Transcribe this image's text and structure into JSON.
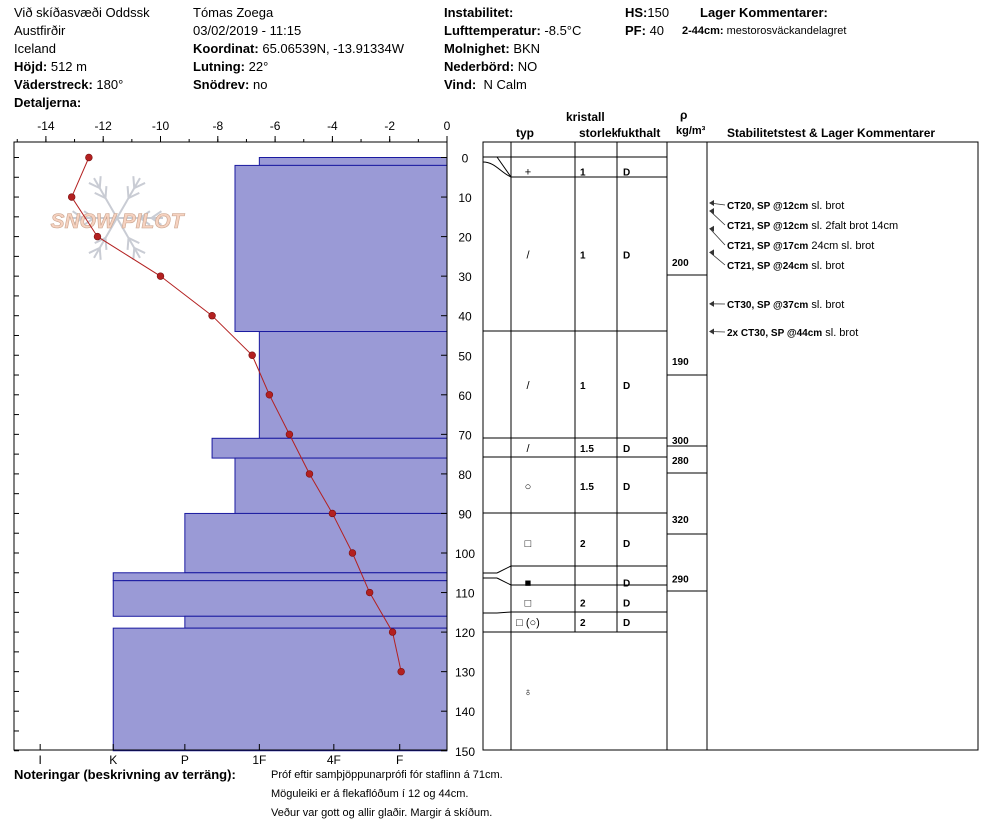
{
  "header": {
    "location": [
      "Við skíðasvæði Oddssk",
      "Austfirðir",
      "Iceland"
    ],
    "elevation_label": "Höjd:",
    "elevation_value": "512 m",
    "aspect_label": "Väderstreck:",
    "aspect_value": "180°",
    "details_label": "Detaljerna:",
    "observer": "Tómas Zoega",
    "datetime": "03/02/2019 - 11:15",
    "coord_label": "Koordinat:",
    "coord_value": "65.06539N, -13.91334W",
    "slope_label": "Lutning:",
    "slope_value": "22°",
    "snowdrift_label": "Snödrev:",
    "snowdrift_value": "no",
    "instability_label": "Instabilitet:",
    "airtemp_label": "Lufttemperatur:",
    "airtemp_value": "-8.5°C",
    "sky_label": "Molnighet:",
    "sky_value": "BKN",
    "precip_label": "Nederbörd:",
    "precip_value": "NO",
    "wind_label": "Vind:",
    "wind_value": "N Calm",
    "hs_label": "HS:",
    "hs_value": "150",
    "pf_label": "PF:",
    "pf_value": "40",
    "layer_comments_title": "Lager Kommentarer:",
    "layer_comment_depth": "2-44cm:",
    "layer_comment_text": "mestorosväckandelagret"
  },
  "watermark": {
    "text": "SNOW PILOT"
  },
  "columns": {
    "crystal": "kristall",
    "type": "typ",
    "size": "storlek",
    "moisture": "fukthalt",
    "rho": "ρ",
    "density_unit": "kg/m³",
    "stability": "Stabilitetstest & Lager Kommentarer"
  },
  "notes": {
    "label": "Noteringar (beskrivning av terräng):",
    "lines": [
      "Próf eftir samþjöppunarprófi fór staflinn á 71cm.",
      "Möguleiki er á flekaflóðum í 12 og 44cm.",
      "Veður var gott og allir glaðir. Margir á skíðum."
    ]
  },
  "chart_data": {
    "type": "line",
    "temp_axis": {
      "ticks": [
        "-14",
        "-12",
        "-10",
        "-8",
        "-6",
        "-4",
        "-2",
        "0"
      ],
      "range": [
        -15,
        0
      ]
    },
    "depth_axis": {
      "ticks": [
        "0",
        "10",
        "20",
        "30",
        "40",
        "50",
        "60",
        "70",
        "80",
        "90",
        "100",
        "110",
        "120",
        "130",
        "140",
        "150"
      ],
      "range": [
        0,
        150
      ]
    },
    "hardness_axis": {
      "ticks": [
        "I",
        "K",
        "P",
        "1F",
        "4F",
        "F"
      ],
      "values": [
        14.2,
        11.65,
        9.15,
        6.55,
        3.95,
        1.65
      ]
    },
    "temperature_profile": [
      {
        "temp": -12.5,
        "depth": 0
      },
      {
        "temp": -13.1,
        "depth": 10
      },
      {
        "temp": -12.2,
        "depth": 20
      },
      {
        "temp": -10.0,
        "depth": 30
      },
      {
        "temp": -8.2,
        "depth": 40
      },
      {
        "temp": -6.8,
        "depth": 50
      },
      {
        "temp": -6.2,
        "depth": 60
      },
      {
        "temp": -5.5,
        "depth": 70
      },
      {
        "temp": -4.8,
        "depth": 80
      },
      {
        "temp": -4.0,
        "depth": 90
      },
      {
        "temp": -3.3,
        "depth": 100
      },
      {
        "temp": -2.7,
        "depth": 110
      },
      {
        "temp": -1.9,
        "depth": 120
      },
      {
        "temp": -1.6,
        "depth": 130
      }
    ],
    "hardness_layers": [
      {
        "from": 0,
        "to": 2,
        "hardness": "1F"
      },
      {
        "from": 2,
        "to": 44,
        "hardness": "1F-"
      },
      {
        "from": 44,
        "to": 71,
        "hardness": "1F"
      },
      {
        "from": 71,
        "to": 76,
        "hardness": "1F+"
      },
      {
        "from": 76,
        "to": 90,
        "hardness": "1F-"
      },
      {
        "from": 90,
        "to": 105,
        "hardness": "P-"
      },
      {
        "from": 105,
        "to": 107,
        "hardness": "K"
      },
      {
        "from": 107,
        "to": 116,
        "hardness": "K"
      },
      {
        "from": 116,
        "to": 119,
        "hardness": "P-"
      },
      {
        "from": 119,
        "to": 150,
        "hardness": "K"
      }
    ]
  },
  "layers": [
    {
      "from": 0,
      "to": 2,
      "type": "",
      "size": "",
      "moisture": ""
    },
    {
      "from": 2,
      "to": 5,
      "type": "+",
      "size": "1",
      "moisture": "D"
    },
    {
      "from": 5,
      "to": 44,
      "type": "/",
      "size": "1",
      "moisture": "D"
    },
    {
      "from": 44,
      "to": 71,
      "type": "/",
      "size": "1",
      "moisture": "D"
    },
    {
      "from": 71,
      "to": 76,
      "type": "/",
      "size": "1.5",
      "moisture": "D"
    },
    {
      "from": 76,
      "to": 90,
      "type": "○",
      "size": "1.5",
      "moisture": "D"
    },
    {
      "from": 90,
      "to": 105,
      "type": "□",
      "size": "2",
      "moisture": "D"
    },
    {
      "from": 105,
      "to": 110,
      "type": "■",
      "size": "",
      "moisture": "D"
    },
    {
      "from": 110,
      "to": 115,
      "type": "□",
      "size": "2",
      "moisture": "D"
    },
    {
      "from": 115,
      "to": 120,
      "type": "□ (○)",
      "size": "2",
      "moisture": "D"
    },
    {
      "from": 120,
      "to": 150,
      "type": "♁",
      "size": "",
      "moisture": ""
    }
  ],
  "densities": [
    {
      "depth": 30,
      "value": "200"
    },
    {
      "depth": 55,
      "value": "190"
    },
    {
      "depth": 75,
      "value": "300"
    },
    {
      "depth": 80,
      "value": "280"
    },
    {
      "depth": 95,
      "value": "320"
    },
    {
      "depth": 110,
      "value": "290"
    }
  ],
  "tests": [
    {
      "depth": 12,
      "code": "CT20, SP @12cm",
      "comment": "sl. brot"
    },
    {
      "depth": 12,
      "code": "CT21, SP @12cm",
      "comment": "sl. 2falt brot 14cm"
    },
    {
      "depth": 17,
      "code": "CT21, SP @17cm",
      "comment": "24cm sl. brot"
    },
    {
      "depth": 24,
      "code": "CT21, SP @24cm",
      "comment": "sl. brot"
    },
    {
      "depth": 37,
      "code": "CT30, SP @37cm",
      "comment": "sl. brot"
    },
    {
      "depth": 44,
      "code": "2x CT30, SP @44cm",
      "comment": "sl. brot"
    }
  ]
}
